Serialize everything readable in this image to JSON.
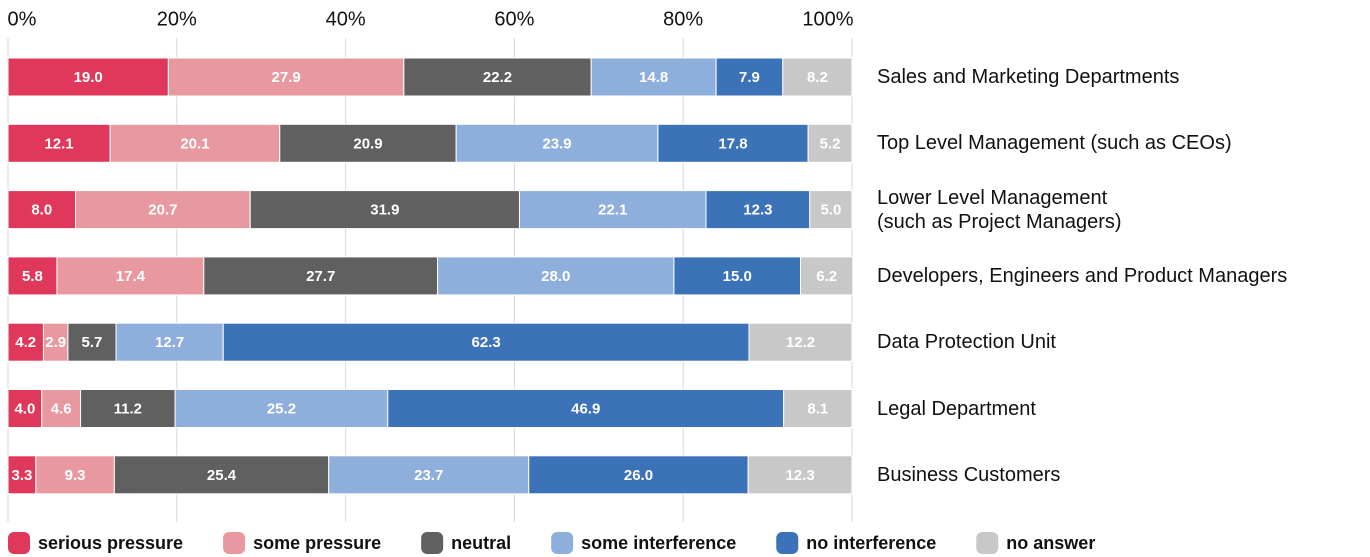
{
  "chart_data": {
    "type": "stacked-barh",
    "categories": [
      "Sales and Marketing Departments",
      "Top Level Management (such as CEOs)",
      "Lower Level Management\n(such as Project Managers)",
      "Developers, Engineers and Product Managers",
      "Data Protection Unit",
      "Legal Department",
      "Business Customers"
    ],
    "series": [
      {
        "name": "serious pressure",
        "color": "#e0385a",
        "values": [
          19.0,
          12.1,
          8.0,
          5.8,
          4.2,
          4.0,
          3.3
        ]
      },
      {
        "name": "some pressure",
        "color": "#e8999f",
        "values": [
          27.9,
          20.1,
          20.7,
          17.4,
          2.9,
          4.6,
          9.3
        ]
      },
      {
        "name": "neutral",
        "color": "#606060",
        "values": [
          22.2,
          20.9,
          31.9,
          27.7,
          5.7,
          11.2,
          25.4
        ]
      },
      {
        "name": "some interference",
        "color": "#8eaedc",
        "values": [
          14.8,
          23.9,
          22.1,
          28.0,
          12.7,
          25.2,
          23.7
        ]
      },
      {
        "name": "no interference",
        "color": "#3b72b8",
        "values": [
          7.9,
          17.8,
          12.3,
          15.0,
          62.3,
          46.9,
          26.0
        ]
      },
      {
        "name": "no answer",
        "color": "#c8c8c8",
        "values": [
          8.2,
          5.2,
          5.0,
          6.2,
          12.2,
          8.1,
          12.3
        ]
      }
    ],
    "value_labels": [
      [
        "19.0",
        "12.1",
        "8.0",
        "5.8",
        "4.2",
        "4.0",
        "3.3"
      ],
      [
        "27.9",
        "20.1",
        "20.7",
        "17.4",
        "2.9",
        "4.6",
        "9.3"
      ],
      [
        "22.2",
        "20.9",
        "31.9",
        "27.7",
        "5.7",
        "11.2",
        "25.4"
      ],
      [
        "14.8",
        "23.9",
        "22.1",
        "28.0",
        "12.7",
        "25.2",
        "23.7"
      ],
      [
        "7.9",
        "17.8",
        "12.3",
        "15.0",
        "62.3",
        "46.9",
        "26.0"
      ],
      [
        "8.2",
        "5.2",
        "5.0",
        "6.2",
        "12.2",
        "8.1",
        "12.3"
      ]
    ],
    "xlim": [
      0,
      100
    ],
    "xticks": [
      {
        "value": 0,
        "label": "0%"
      },
      {
        "value": 20,
        "label": "20%"
      },
      {
        "value": 40,
        "label": "40%"
      },
      {
        "value": 60,
        "label": "60%"
      },
      {
        "value": 80,
        "label": "80%"
      },
      {
        "value": 100,
        "label": "100%"
      }
    ],
    "grid": true,
    "legend": "bottom"
  }
}
